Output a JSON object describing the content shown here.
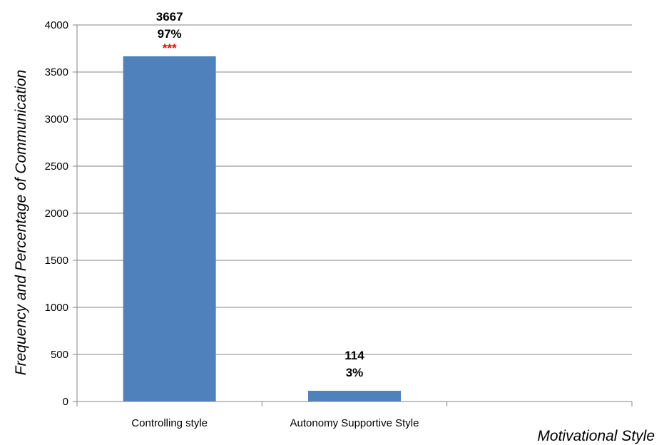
{
  "chart_data": {
    "type": "bar",
    "categories": [
      "Controlling style",
      "Autonomy Supportive Style"
    ],
    "values": [
      3667,
      114
    ],
    "percent_labels": [
      "97%",
      "3%"
    ],
    "significance": [
      "***",
      ""
    ],
    "xlabel": "Motivational Style",
    "ylabel": "Frequency and Percentage of Communication",
    "ylim": [
      0,
      4000
    ],
    "yticks": [
      0,
      500,
      1000,
      1500,
      2000,
      2500,
      3000,
      3500,
      4000
    ],
    "grid": true,
    "legend": "none",
    "colors": {
      "bar": "#4f81bd",
      "significance": "#ff0000",
      "grid": "#868686"
    }
  }
}
